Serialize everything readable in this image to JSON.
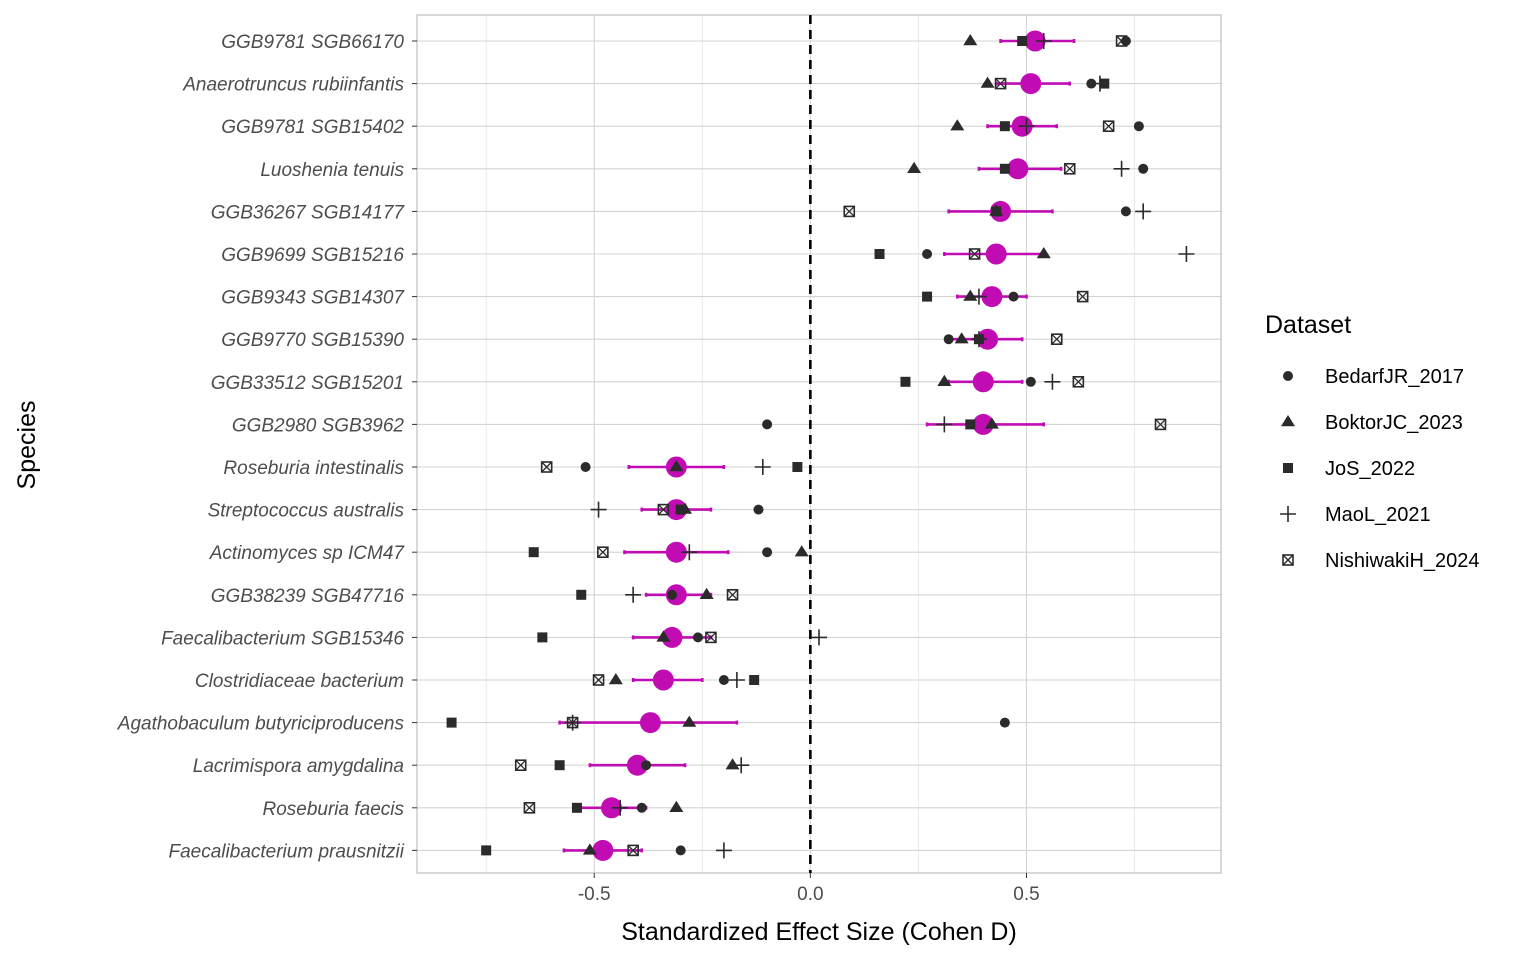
{
  "chart_data": {
    "type": "scatter",
    "xlabel": "Standardized Effect Size (Cohen D)",
    "ylabel": "Species",
    "xlim": [
      -0.91,
      0.95
    ],
    "x_ticks": [
      -0.5,
      0.0,
      0.5
    ],
    "x_tick_labels": [
      "-0.5",
      "0.0",
      "0.5"
    ],
    "reference_line": 0,
    "grid": true,
    "summary_color": "#c10cb4",
    "point_color": "#2b2b2b",
    "legend": {
      "title": "Dataset",
      "position": "right",
      "entries": [
        {
          "label": "BedarfJR_2017",
          "shape": "circle"
        },
        {
          "label": "BoktorJC_2023",
          "shape": "triangle"
        },
        {
          "label": "JoS_2022",
          "shape": "square"
        },
        {
          "label": "MaoL_2021",
          "shape": "plus"
        },
        {
          "label": "NishiwakiH_2024",
          "shape": "square-x"
        }
      ]
    },
    "species": [
      {
        "name": "GGB9781 SGB66170",
        "estimate": 0.52,
        "ci": [
          0.44,
          0.61
        ],
        "points": {
          "BedarfJR_2017": 0.73,
          "BoktorJC_2023": 0.37,
          "JoS_2022": 0.49,
          "MaoL_2021": 0.54,
          "NishiwakiH_2024": 0.72
        }
      },
      {
        "name": "Anaerotruncus rubiinfantis",
        "estimate": 0.51,
        "ci": [
          0.43,
          0.6
        ],
        "points": {
          "BedarfJR_2017": 0.65,
          "BoktorJC_2023": 0.41,
          "JoS_2022": 0.68,
          "MaoL_2021": 0.67,
          "NishiwakiH_2024": 0.44
        }
      },
      {
        "name": "GGB9781 SGB15402",
        "estimate": 0.49,
        "ci": [
          0.41,
          0.57
        ],
        "points": {
          "BedarfJR_2017": 0.76,
          "BoktorJC_2023": 0.34,
          "JoS_2022": 0.45,
          "MaoL_2021": 0.5,
          "NishiwakiH_2024": 0.69
        }
      },
      {
        "name": "Luoshenia tenuis",
        "estimate": 0.48,
        "ci": [
          0.39,
          0.58
        ],
        "points": {
          "BedarfJR_2017": 0.77,
          "BoktorJC_2023": 0.24,
          "JoS_2022": 0.45,
          "MaoL_2021": 0.72,
          "NishiwakiH_2024": 0.6
        }
      },
      {
        "name": "GGB36267 SGB14177",
        "estimate": 0.44,
        "ci": [
          0.32,
          0.56
        ],
        "points": {
          "BedarfJR_2017": 0.73,
          "BoktorJC_2023": 0.43,
          "JoS_2022": 0.43,
          "MaoL_2021": 0.77,
          "NishiwakiH_2024": 0.09
        }
      },
      {
        "name": "GGB9699 SGB15216",
        "estimate": 0.43,
        "ci": [
          0.31,
          0.54
        ],
        "points": {
          "BedarfJR_2017": 0.27,
          "BoktorJC_2023": 0.54,
          "JoS_2022": 0.16,
          "MaoL_2021": 0.87,
          "NishiwakiH_2024": 0.38
        }
      },
      {
        "name": "GGB9343 SGB14307",
        "estimate": 0.42,
        "ci": [
          0.34,
          0.5
        ],
        "points": {
          "BedarfJR_2017": 0.47,
          "BoktorJC_2023": 0.37,
          "JoS_2022": 0.27,
          "MaoL_2021": 0.39,
          "NishiwakiH_2024": 0.63
        }
      },
      {
        "name": "GGB9770 SGB15390",
        "estimate": 0.41,
        "ci": [
          0.32,
          0.49
        ],
        "points": {
          "BedarfJR_2017": 0.32,
          "BoktorJC_2023": 0.35,
          "JoS_2022": 0.39,
          "MaoL_2021": 0.39,
          "NishiwakiH_2024": 0.57
        }
      },
      {
        "name": "GGB33512 SGB15201",
        "estimate": 0.4,
        "ci": [
          0.32,
          0.49
        ],
        "points": {
          "BedarfJR_2017": 0.51,
          "BoktorJC_2023": 0.31,
          "JoS_2022": 0.22,
          "MaoL_2021": 0.56,
          "NishiwakiH_2024": 0.62
        }
      },
      {
        "name": "GGB2980 SGB3962",
        "estimate": 0.4,
        "ci": [
          0.27,
          0.54
        ],
        "points": {
          "BedarfJR_2017": -0.1,
          "BoktorJC_2023": 0.42,
          "JoS_2022": 0.37,
          "MaoL_2021": 0.31,
          "NishiwakiH_2024": 0.81
        }
      },
      {
        "name": "Roseburia intestinalis",
        "estimate": -0.31,
        "ci": [
          -0.42,
          -0.2
        ],
        "points": {
          "BedarfJR_2017": -0.52,
          "BoktorJC_2023": -0.31,
          "JoS_2022": -0.03,
          "MaoL_2021": -0.11,
          "NishiwakiH_2024": -0.61
        }
      },
      {
        "name": "Streptococcus australis",
        "estimate": -0.31,
        "ci": [
          -0.39,
          -0.23
        ],
        "points": {
          "BedarfJR_2017": -0.12,
          "BoktorJC_2023": -0.29,
          "JoS_2022": -0.3,
          "MaoL_2021": -0.49,
          "NishiwakiH_2024": -0.34
        }
      },
      {
        "name": "Actinomyces sp ICM47",
        "estimate": -0.31,
        "ci": [
          -0.43,
          -0.19
        ],
        "points": {
          "BedarfJR_2017": -0.1,
          "BoktorJC_2023": -0.02,
          "JoS_2022": -0.64,
          "MaoL_2021": -0.28,
          "NishiwakiH_2024": -0.48
        }
      },
      {
        "name": "GGB38239 SGB47716",
        "estimate": -0.31,
        "ci": [
          -0.38,
          -0.23
        ],
        "points": {
          "BedarfJR_2017": -0.32,
          "BoktorJC_2023": -0.24,
          "JoS_2022": -0.53,
          "MaoL_2021": -0.41,
          "NishiwakiH_2024": -0.18
        }
      },
      {
        "name": "Faecalibacterium SGB15346",
        "estimate": -0.32,
        "ci": [
          -0.41,
          -0.23
        ],
        "points": {
          "BedarfJR_2017": -0.26,
          "BoktorJC_2023": -0.34,
          "JoS_2022": -0.62,
          "MaoL_2021": 0.02,
          "NishiwakiH_2024": -0.23
        }
      },
      {
        "name": "Clostridiaceae bacterium",
        "estimate": -0.34,
        "ci": [
          -0.41,
          -0.25
        ],
        "points": {
          "BedarfJR_2017": -0.2,
          "BoktorJC_2023": -0.45,
          "JoS_2022": -0.13,
          "MaoL_2021": -0.17,
          "NishiwakiH_2024": -0.49
        }
      },
      {
        "name": "Agathobaculum butyriciproducens",
        "estimate": -0.37,
        "ci": [
          -0.58,
          -0.17
        ],
        "points": {
          "BedarfJR_2017": 0.45,
          "BoktorJC_2023": -0.28,
          "JoS_2022": -0.83,
          "MaoL_2021": -0.55,
          "NishiwakiH_2024": -0.55
        }
      },
      {
        "name": "Lacrimispora amygdalina",
        "estimate": -0.4,
        "ci": [
          -0.51,
          -0.29
        ],
        "points": {
          "BedarfJR_2017": -0.38,
          "BoktorJC_2023": -0.18,
          "JoS_2022": -0.58,
          "MaoL_2021": -0.16,
          "NishiwakiH_2024": -0.67
        }
      },
      {
        "name": "Roseburia faecis",
        "estimate": -0.46,
        "ci": [
          -0.54,
          -0.38
        ],
        "points": {
          "BedarfJR_2017": -0.39,
          "BoktorJC_2023": -0.31,
          "JoS_2022": -0.54,
          "MaoL_2021": -0.44,
          "NishiwakiH_2024": -0.65
        }
      },
      {
        "name": "Faecalibacterium prausnitzii",
        "estimate": -0.48,
        "ci": [
          -0.57,
          -0.39
        ],
        "points": {
          "BedarfJR_2017": -0.3,
          "BoktorJC_2023": -0.51,
          "JoS_2022": -0.75,
          "MaoL_2021": -0.2,
          "NishiwakiH_2024": -0.41
        }
      }
    ]
  }
}
